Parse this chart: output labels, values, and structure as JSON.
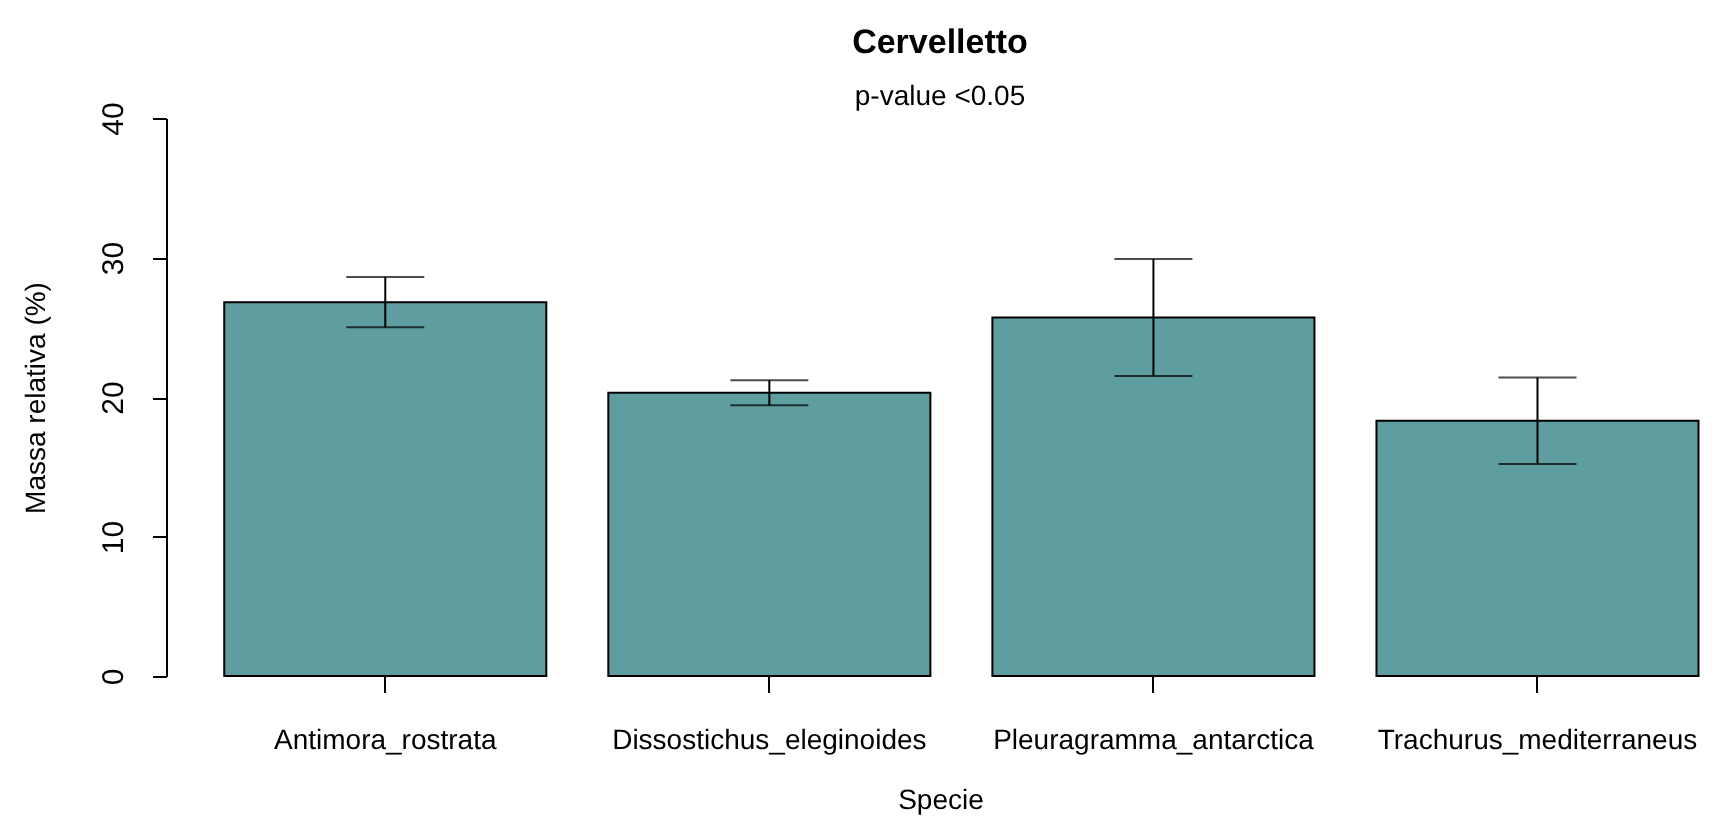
{
  "chart_data": {
    "type": "bar",
    "title": "Cervelletto",
    "subtitle": "p-value <0.05",
    "xlabel": "Specie",
    "ylabel": "Massa relativa (%)",
    "categories": [
      "Antimora_rostrata",
      "Dissostichus_eleginoides",
      "Pleuragramma_antarctica",
      "Trachurus_mediterraneus"
    ],
    "values": [
      26.8,
      20.3,
      25.7,
      18.3
    ],
    "errors": [
      1.8,
      0.9,
      4.2,
      3.1
    ],
    "color": "#5f9ea0",
    "ylim": [
      0,
      40
    ],
    "yticks": [
      0,
      10,
      20,
      30,
      40
    ]
  }
}
